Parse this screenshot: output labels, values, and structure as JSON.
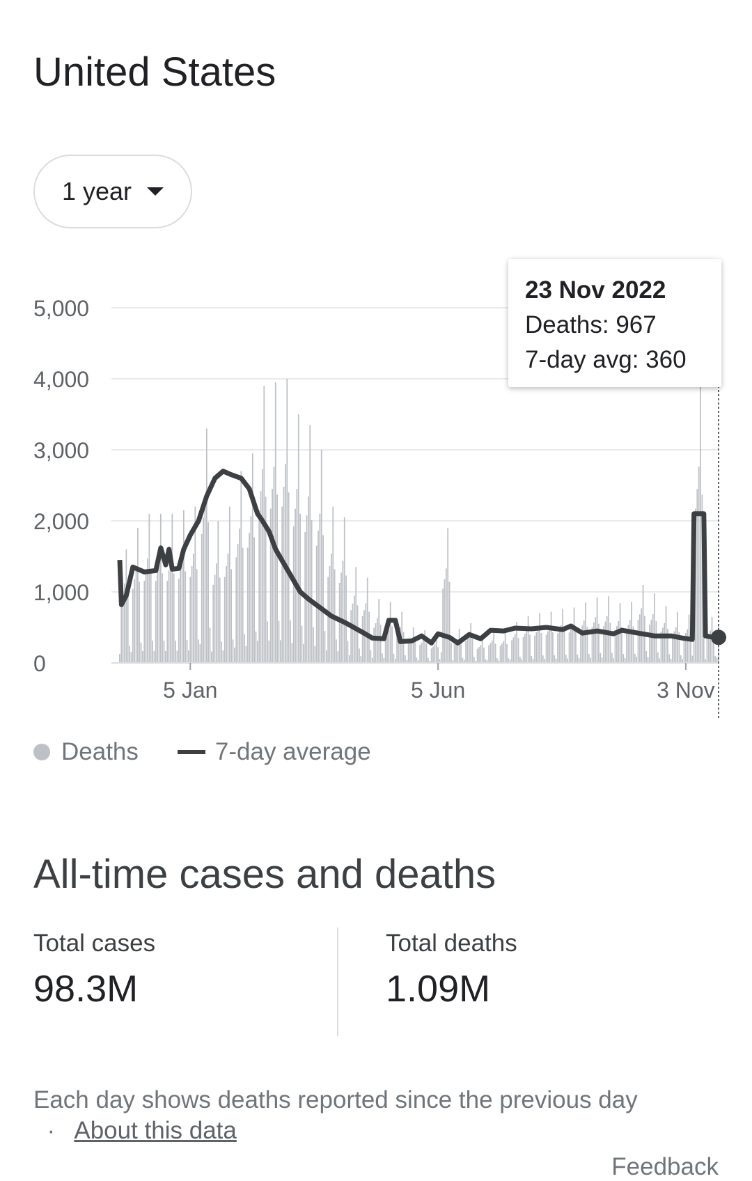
{
  "page": {
    "title": "United States"
  },
  "range_select": {
    "label": "1 year",
    "icon": "caret-down-icon"
  },
  "tooltip": {
    "date": "23 Nov 2022",
    "deaths": "Deaths: 967",
    "avg": "7-day avg: 360"
  },
  "legend": {
    "deaths": "Deaths",
    "avg": "7-day average"
  },
  "colors": {
    "bars": "#bdc1c6",
    "line": "#3c4043",
    "grid": "#e8eaed",
    "axis_text": "#5f6368"
  },
  "chart_data": {
    "type": "bar",
    "x_range": [
      "2021-11-23",
      "2022-11-23"
    ],
    "y_ticks": [
      "0",
      "1,000",
      "2,000",
      "3,000",
      "4,000",
      "5,000"
    ],
    "ylim": [
      0,
      5000
    ],
    "x_ticks": [
      "5 Jan",
      "5 Jun",
      "3 Nov"
    ],
    "x_tick_dates": [
      "2022-01-05",
      "2022-06-05",
      "2022-11-03"
    ],
    "grid": true,
    "legend_position": "bottom-left",
    "series": [
      {
        "name": "Deaths",
        "kind": "bar",
        "weekly_peak": [
          1600,
          1900,
          2100,
          2100,
          2100,
          2150,
          2200,
          3300,
          2000,
          2200,
          2700,
          2950,
          3900,
          3950,
          4000,
          3500,
          3350,
          3000,
          2200,
          2050,
          1350,
          1200,
          900,
          860,
          720,
          500,
          460,
          370,
          1900,
          480,
          560,
          360,
          450,
          440,
          580,
          660,
          700,
          720,
          760,
          780,
          850,
          920,
          940,
          840,
          860,
          1100,
          980,
          800,
          720,
          680,
          3950,
          650,
          967
        ]
      },
      {
        "name": "7-day average",
        "kind": "line",
        "points": [
          [
            "2021-11-23",
            1450
          ],
          [
            "2021-11-24",
            820
          ],
          [
            "2021-11-27",
            950
          ],
          [
            "2021-12-01",
            1350
          ],
          [
            "2021-12-08",
            1280
          ],
          [
            "2021-12-15",
            1300
          ],
          [
            "2021-12-18",
            1620
          ],
          [
            "2021-12-21",
            1380
          ],
          [
            "2021-12-23",
            1600
          ],
          [
            "2021-12-25",
            1320
          ],
          [
            "2021-12-29",
            1330
          ],
          [
            "2022-01-01",
            1600
          ],
          [
            "2022-01-05",
            1800
          ],
          [
            "2022-01-10",
            2000
          ],
          [
            "2022-01-15",
            2350
          ],
          [
            "2022-01-20",
            2600
          ],
          [
            "2022-01-25",
            2700
          ],
          [
            "2022-01-30",
            2650
          ],
          [
            "2022-02-05",
            2600
          ],
          [
            "2022-02-10",
            2450
          ],
          [
            "2022-02-15",
            2100
          ],
          [
            "2022-02-18",
            2000
          ],
          [
            "2022-02-22",
            1850
          ],
          [
            "2022-02-26",
            1600
          ],
          [
            "2022-03-03",
            1400
          ],
          [
            "2022-03-08",
            1200
          ],
          [
            "2022-03-13",
            1000
          ],
          [
            "2022-03-18",
            900
          ],
          [
            "2022-03-25",
            780
          ],
          [
            "2022-04-01",
            660
          ],
          [
            "2022-04-10",
            560
          ],
          [
            "2022-04-20",
            430
          ],
          [
            "2022-04-26",
            350
          ],
          [
            "2022-05-03",
            340
          ],
          [
            "2022-05-06",
            600
          ],
          [
            "2022-05-10",
            600
          ],
          [
            "2022-05-13",
            300
          ],
          [
            "2022-05-20",
            310
          ],
          [
            "2022-05-26",
            380
          ],
          [
            "2022-06-01",
            280
          ],
          [
            "2022-06-05",
            410
          ],
          [
            "2022-06-12",
            360
          ],
          [
            "2022-06-17",
            280
          ],
          [
            "2022-06-24",
            400
          ],
          [
            "2022-07-01",
            340
          ],
          [
            "2022-07-07",
            460
          ],
          [
            "2022-07-15",
            450
          ],
          [
            "2022-07-22",
            490
          ],
          [
            "2022-08-01",
            480
          ],
          [
            "2022-08-10",
            500
          ],
          [
            "2022-08-20",
            470
          ],
          [
            "2022-08-25",
            520
          ],
          [
            "2022-09-01",
            420
          ],
          [
            "2022-09-10",
            450
          ],
          [
            "2022-09-20",
            410
          ],
          [
            "2022-09-25",
            460
          ],
          [
            "2022-10-05",
            420
          ],
          [
            "2022-10-15",
            380
          ],
          [
            "2022-10-25",
            380
          ],
          [
            "2022-11-01",
            350
          ],
          [
            "2022-11-07",
            330
          ],
          [
            "2022-11-08",
            2100
          ],
          [
            "2022-11-14",
            2100
          ],
          [
            "2022-11-15",
            380
          ],
          [
            "2022-11-20",
            360
          ],
          [
            "2022-11-23",
            360
          ]
        ]
      }
    ]
  },
  "all_time": {
    "title": "All-time cases and deaths",
    "cases_label": "Total cases",
    "cases_value": "98.3M",
    "deaths_label": "Total deaths",
    "deaths_value": "1.09M"
  },
  "footer": {
    "note": "Each day shows deaths reported since the previous day",
    "separator": "·",
    "about_link": "About this data",
    "feedback": "Feedback"
  }
}
